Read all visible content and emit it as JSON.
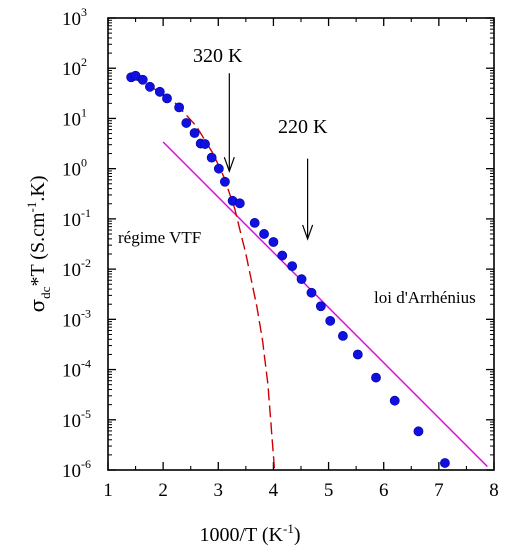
{
  "chart_data": {
    "type": "scatter",
    "xlabel": "1000/T (K",
    "xlabel_sup": "-1",
    "xlabel_close": ")",
    "ylabel": "σ",
    "ylabel_sub": "dc",
    "ylabel_mid": "*T (S.cm",
    "ylabel_sup": "-1",
    "ylabel_end": ".K)",
    "xlim": [
      1,
      8
    ],
    "ylim_log10": [
      -6,
      3
    ],
    "y_scale": "log",
    "x_ticks": [
      "1",
      "2",
      "3",
      "4",
      "5",
      "6",
      "7",
      "8"
    ],
    "y_ticks": [
      {
        "base": "10",
        "exp": "-6"
      },
      {
        "base": "10",
        "exp": "-5"
      },
      {
        "base": "10",
        "exp": "-4"
      },
      {
        "base": "10",
        "exp": "-3"
      },
      {
        "base": "10",
        "exp": "-2"
      },
      {
        "base": "10",
        "exp": "-1"
      },
      {
        "base": "10",
        "exp": "0"
      },
      {
        "base": "10",
        "exp": "1"
      },
      {
        "base": "10",
        "exp": "2"
      },
      {
        "base": "10",
        "exp": "3"
      }
    ],
    "points_log10": [
      [
        1.42,
        1.82
      ],
      [
        1.5,
        1.85
      ],
      [
        1.63,
        1.77
      ],
      [
        1.76,
        1.63
      ],
      [
        1.94,
        1.53
      ],
      [
        2.07,
        1.4
      ],
      [
        2.29,
        1.22
      ],
      [
        2.42,
        0.91
      ],
      [
        2.57,
        0.71
      ],
      [
        2.68,
        0.5
      ],
      [
        2.76,
        0.49
      ],
      [
        2.88,
        0.22
      ],
      [
        3.01,
        0.0
      ],
      [
        3.12,
        -0.26
      ],
      [
        3.26,
        -0.64
      ],
      [
        3.39,
        -0.69
      ],
      [
        3.66,
        -1.08
      ],
      [
        3.83,
        -1.3
      ],
      [
        4.0,
        -1.46
      ],
      [
        4.16,
        -1.73
      ],
      [
        4.34,
        -1.94
      ],
      [
        4.51,
        -2.2
      ],
      [
        4.69,
        -2.47
      ],
      [
        4.86,
        -2.74
      ],
      [
        5.03,
        -3.03
      ],
      [
        5.26,
        -3.33
      ],
      [
        5.53,
        -3.7
      ],
      [
        5.86,
        -4.16
      ],
      [
        6.2,
        -4.62
      ],
      [
        6.63,
        -5.23
      ],
      [
        7.11,
        -5.86
      ]
    ],
    "series_colors": {
      "points": "#1010e0",
      "arrhenius": "#e000e0",
      "vtf": "#cc0000"
    },
    "arrhenius_fit_log10": [
      [
        2.0,
        0.53
      ],
      [
        7.88,
        -5.93
      ]
    ],
    "vtf_fit_log10": [
      [
        1.42,
        1.82
      ],
      [
        1.8,
        1.62
      ],
      [
        2.2,
        1.33
      ],
      [
        2.6,
        0.85
      ],
      [
        2.9,
        0.31
      ],
      [
        3.1,
        -0.16
      ],
      [
        3.3,
        -0.8
      ],
      [
        3.5,
        -1.7
      ],
      [
        3.7,
        -2.75
      ],
      [
        3.8,
        -3.4
      ],
      [
        3.9,
        -4.3
      ],
      [
        3.95,
        -5.0
      ],
      [
        4.02,
        -6.0
      ]
    ],
    "annotations": [
      {
        "text": "320 K",
        "x": 3.2,
        "arrow_from_log10": 1.9,
        "arrow_to_log10": -0.05
      },
      {
        "text": "220 K",
        "x": 4.62,
        "arrow_from_log10": 0.2,
        "arrow_to_log10": -1.4
      }
    ],
    "labels": {
      "vtf": "régime VTF",
      "arrhenius": "loi d'Arrhénius"
    }
  }
}
